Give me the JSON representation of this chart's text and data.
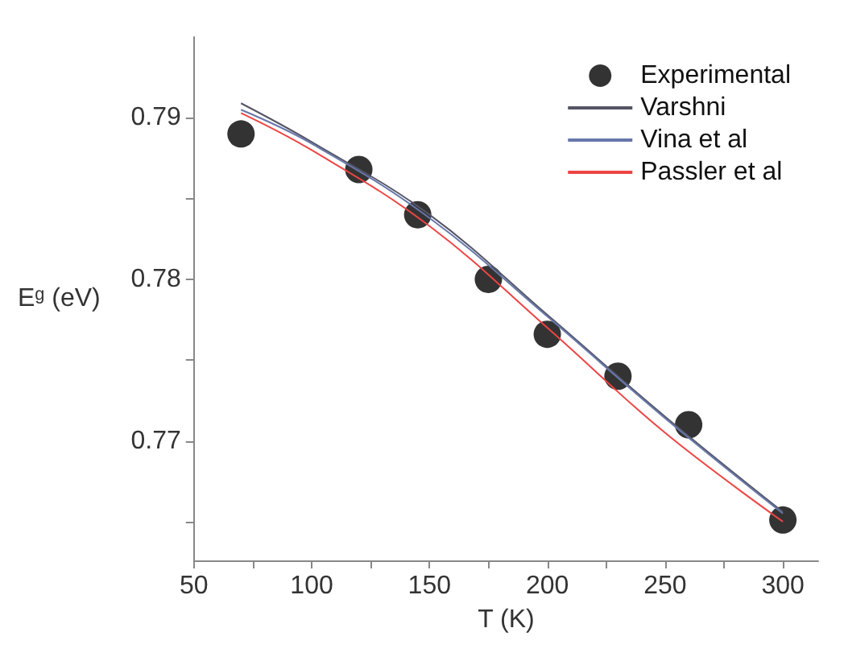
{
  "chart_data": {
    "type": "line",
    "xlabel": "T (K)",
    "ylabel": "Eᵍ (eV)",
    "xlim": [
      50,
      315
    ],
    "ylim": [
      0.7626,
      0.795
    ],
    "xticks": [
      50,
      {
        "value": 75,
        "label": null
      },
      100,
      {
        "value": 125,
        "label": null
      },
      150,
      {
        "value": 175,
        "label": null
      },
      200,
      {
        "value": 225,
        "label": null
      },
      250,
      {
        "value": 275,
        "label": null
      },
      300
    ],
    "yticks": [
      {
        "value": 0.765,
        "label": null
      },
      0.77,
      {
        "value": 0.775,
        "label": null
      },
      0.78,
      {
        "value": 0.785,
        "label": null
      },
      0.79
    ],
    "grid": false,
    "legend": "top right",
    "series": [
      {
        "name": "Experimental",
        "type": "scatter",
        "marker": "circle",
        "color": "#000000",
        "x": [
          70,
          120,
          145,
          175,
          200,
          230,
          260,
          300
        ],
        "values": [
          0.789,
          0.7868,
          0.784,
          0.78,
          0.7766,
          0.774,
          0.771,
          0.7651
        ]
      },
      {
        "name": "Varshni",
        "color": "#555566",
        "x": [
          70,
          100,
          150,
          200,
          250,
          300
        ],
        "values": [
          0.7909,
          0.7885,
          0.784,
          0.7778,
          0.7715,
          0.7656
        ]
      },
      {
        "name": "Vina et al",
        "color": "#6677aa",
        "x": [
          70,
          100,
          150,
          200,
          250,
          300
        ],
        "values": [
          0.7905,
          0.7884,
          0.7838,
          0.7777,
          0.7714,
          0.7655
        ]
      },
      {
        "name": "Passler et al",
        "color": "#ee4444",
        "x": [
          70,
          100,
          150,
          200,
          250,
          300
        ],
        "values": [
          0.7903,
          0.788,
          0.7833,
          0.777,
          0.7705,
          0.765
        ]
      }
    ]
  }
}
